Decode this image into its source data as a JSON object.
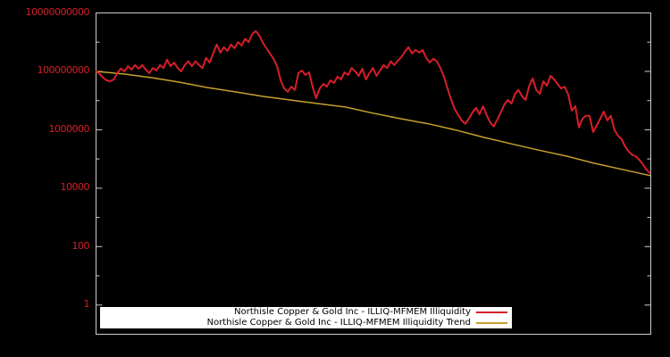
{
  "chart_data": {
    "type": "line",
    "title": "",
    "background_color": "#000000",
    "frame_color": "#cccccc",
    "x_axis": {
      "tick_labels": [],
      "note": "no x tick labels rendered"
    },
    "y_axis": {
      "scale": "log",
      "range_log10": [
        -1,
        10
      ],
      "label_color": "#d81e28",
      "ticks": [
        {
          "label": "10000000000",
          "value": 10000000000.0
        },
        {
          "label": "100000000",
          "value": 100000000.0
        },
        {
          "label": "1000000",
          "value": 1000000.0
        },
        {
          "label": "10000",
          "value": 10000.0
        },
        {
          "label": "100",
          "value": 100.0
        },
        {
          "label": "1",
          "value": 1
        }
      ]
    },
    "legend": {
      "position": "bottom-inside",
      "background": "#ffffff",
      "text_color": "#000000"
    },
    "series": [
      {
        "name": "Northisle Copper & Gold Inc - ILLIQ-MFMEM Illiquidity",
        "color": "#d81e28",
        "line_width": 2,
        "values": [
          100000000.0,
          81000000.0,
          61000000.0,
          49000000.0,
          46000000.0,
          53000000.0,
          87000000.0,
          124000000.0,
          100000000.0,
          150000000.0,
          115000000.0,
          164000000.0,
          124000000.0,
          164000000.0,
          115000000.0,
          87000000.0,
          130000000.0,
          107000000.0,
          164000000.0,
          130000000.0,
          250000000.0,
          150000000.0,
          200000000.0,
          130000000.0,
          100000000.0,
          164000000.0,
          220000000.0,
          150000000.0,
          220000000.0,
          164000000.0,
          130000000.0,
          290000000.0,
          200000000.0,
          410000000.0,
          830000000.0,
          440000000.0,
          670000000.0,
          500000000.0,
          830000000.0,
          620000000.0,
          1000000000.0,
          770000000.0,
          1300000000.0,
          1000000000.0,
          1900000000.0,
          2400000000.0,
          1700000000.0,
          950000000.0,
          620000000.0,
          410000000.0,
          270000000.0,
          150000000.0,
          49000000.0,
          26000000.0,
          20000000.0,
          30000000.0,
          23000000.0,
          87000000.0,
          107000000.0,
          75000000.0,
          93000000.0,
          30000000.0,
          12000000.0,
          26000000.0,
          37000000.0,
          30000000.0,
          49000000.0,
          40000000.0,
          66000000.0,
          53000000.0,
          93000000.0,
          75000000.0,
          130000000.0,
          100000000.0,
          70000000.0,
          124000000.0,
          53000000.0,
          87000000.0,
          130000000.0,
          70000000.0,
          107000000.0,
          164000000.0,
          130000000.0,
          220000000.0,
          164000000.0,
          230000000.0,
          310000000.0,
          470000000.0,
          670000000.0,
          410000000.0,
          540000000.0,
          440000000.0,
          540000000.0,
          290000000.0,
          200000000.0,
          270000000.0,
          220000000.0,
          130000000.0,
          66000000.0,
          26000000.0,
          11000000.0,
          5200000.0,
          3200000.0,
          2100000.0,
          1600000.0,
          2400000.0,
          3900000.0,
          5600000.0,
          3400000.0,
          6400000.0,
          3200000.0,
          1800000.0,
          1300000.0,
          2200000.0,
          3900000.0,
          7400000.0,
          10500000.0,
          7900000.0,
          17000000.0,
          23000000.0,
          14000000.0,
          10500000.0,
          32000000.0,
          57000000.0,
          23000000.0,
          17000000.0,
          46000000.0,
          32000000.0,
          70000000.0,
          53000000.0,
          37000000.0,
          26000000.0,
          30000000.0,
          16000000.0,
          4500000.0,
          6400000.0,
          1200000.0,
          2400000.0,
          3000000.0,
          3000000.0,
          840000.0,
          1400000.0,
          2400000.0,
          4200000.0,
          2100000.0,
          3000000.0,
          1000000.0,
          630000.0,
          480000.0,
          270000.0,
          180000.0,
          140000.0,
          125000.0,
          94000.0,
          66000.0,
          44000.0,
          33000.0
        ]
      },
      {
        "name": "Northisle Copper & Gold Inc - ILLIQ-MFMEM Illiquidity Trend",
        "color": "#c8a02c",
        "line_width": 1.5,
        "values": [
          100000000.0,
          81000000.0,
          61000000.0,
          43000000.0,
          28000000.0,
          20000000.0,
          14000000.0,
          10500000.0,
          7900000.0,
          6000000.0,
          3700000.0,
          2400000.0,
          1600000.0,
          970000.0,
          550000.0,
          330000.0,
          200000.0,
          125000.0,
          71000.0,
          44000.0,
          27000.0
        ]
      }
    ]
  }
}
